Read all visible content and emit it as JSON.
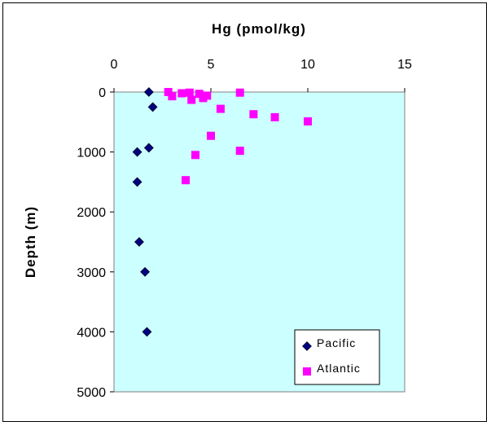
{
  "chart_data": {
    "type": "scatter",
    "title": "Hg (pmol/kg)",
    "xlabel": "",
    "ylabel": "Depth (m)",
    "xlim": [
      0,
      15
    ],
    "ylim": [
      0,
      5000
    ],
    "y_inverted": true,
    "x_axis_position": "top",
    "x_ticks": [
      "0",
      "5",
      "10",
      "15"
    ],
    "y_ticks": [
      "0",
      "1000",
      "2000",
      "3000",
      "4000",
      "5000"
    ],
    "plot_background": "#ccffff",
    "grid": false,
    "legend_position": "bottom-right",
    "series": [
      {
        "name": "Pacific",
        "marker": "diamond",
        "color": "#000080",
        "points": [
          {
            "x": 1.8,
            "y": 0
          },
          {
            "x": 2.0,
            "y": 250
          },
          {
            "x": 1.8,
            "y": 930
          },
          {
            "x": 1.2,
            "y": 1000
          },
          {
            "x": 1.2,
            "y": 1500
          },
          {
            "x": 1.3,
            "y": 2500
          },
          {
            "x": 1.6,
            "y": 3000
          },
          {
            "x": 1.7,
            "y": 4000
          }
        ]
      },
      {
        "name": "Atlantic",
        "marker": "square",
        "color": "#ff00ff",
        "points": [
          {
            "x": 2.8,
            "y": 0
          },
          {
            "x": 3.0,
            "y": 70
          },
          {
            "x": 3.5,
            "y": 20
          },
          {
            "x": 3.9,
            "y": 10
          },
          {
            "x": 4.0,
            "y": 130
          },
          {
            "x": 4.4,
            "y": 30
          },
          {
            "x": 4.6,
            "y": 100
          },
          {
            "x": 4.8,
            "y": 60
          },
          {
            "x": 6.5,
            "y": 10
          },
          {
            "x": 5.5,
            "y": 280
          },
          {
            "x": 7.2,
            "y": 370
          },
          {
            "x": 8.3,
            "y": 420
          },
          {
            "x": 10.0,
            "y": 490
          },
          {
            "x": 5.0,
            "y": 730
          },
          {
            "x": 6.5,
            "y": 980
          },
          {
            "x": 4.2,
            "y": 1050
          },
          {
            "x": 3.7,
            "y": 1470
          }
        ]
      }
    ]
  }
}
